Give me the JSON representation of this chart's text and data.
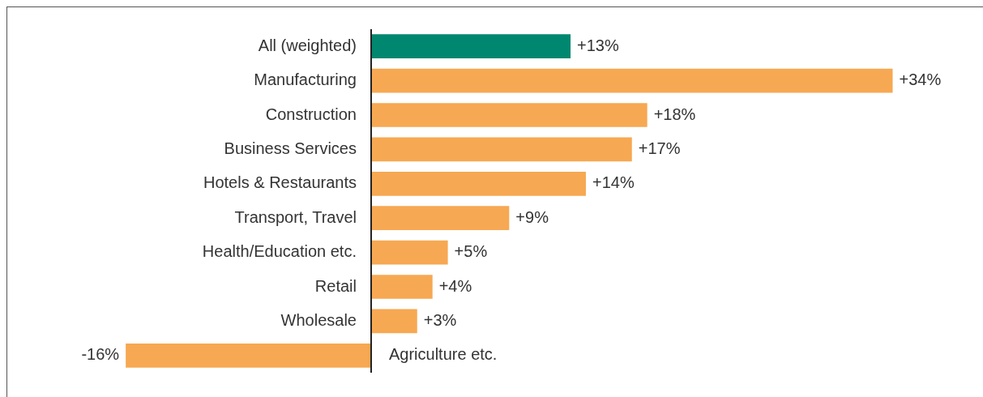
{
  "chart_data": {
    "type": "bar",
    "orientation": "horizontal",
    "categories": [
      "All (weighted)",
      "Manufacturing",
      "Construction",
      "Business Services",
      "Hotels & Restaurants",
      "Transport, Travel",
      "Health/Education etc.",
      "Retail",
      "Wholesale",
      "Agriculture etc."
    ],
    "values": [
      13,
      34,
      18,
      17,
      14,
      9,
      5,
      4,
      3,
      -16
    ],
    "colors": [
      "#00876f",
      "#f7a852",
      "#f7a852",
      "#f7a852",
      "#f7a852",
      "#f7a852",
      "#f7a852",
      "#f7a852",
      "#f7a852",
      "#f7a852"
    ],
    "value_labels": [
      "+13%",
      "+34%",
      "+18%",
      "+17%",
      "+14%",
      "+9%",
      "+5%",
      "+4%",
      "+3%",
      "-16%"
    ],
    "legend": false
  }
}
